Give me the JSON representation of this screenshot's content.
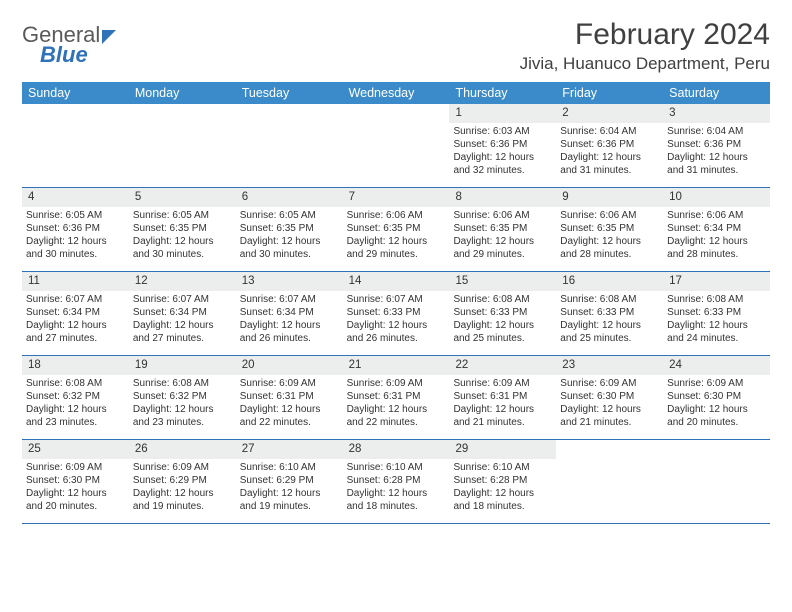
{
  "logo": {
    "text_general": "General",
    "text_blue": "Blue"
  },
  "header": {
    "month_title": "February 2024",
    "location": "Jivia, Huanuco Department, Peru"
  },
  "colors": {
    "header_bar": "#3b8bca",
    "row_divider": "#2f72b8",
    "daynum_bg": "#eceded",
    "text": "#333333",
    "page_bg": "#ffffff"
  },
  "weekdays": [
    "Sunday",
    "Monday",
    "Tuesday",
    "Wednesday",
    "Thursday",
    "Friday",
    "Saturday"
  ],
  "weeks": [
    [
      {
        "day": "",
        "sunrise": "",
        "sunset": "",
        "daylight": ""
      },
      {
        "day": "",
        "sunrise": "",
        "sunset": "",
        "daylight": ""
      },
      {
        "day": "",
        "sunrise": "",
        "sunset": "",
        "daylight": ""
      },
      {
        "day": "",
        "sunrise": "",
        "sunset": "",
        "daylight": ""
      },
      {
        "day": "1",
        "sunrise": "Sunrise: 6:03 AM",
        "sunset": "Sunset: 6:36 PM",
        "daylight": "Daylight: 12 hours and 32 minutes."
      },
      {
        "day": "2",
        "sunrise": "Sunrise: 6:04 AM",
        "sunset": "Sunset: 6:36 PM",
        "daylight": "Daylight: 12 hours and 31 minutes."
      },
      {
        "day": "3",
        "sunrise": "Sunrise: 6:04 AM",
        "sunset": "Sunset: 6:36 PM",
        "daylight": "Daylight: 12 hours and 31 minutes."
      }
    ],
    [
      {
        "day": "4",
        "sunrise": "Sunrise: 6:05 AM",
        "sunset": "Sunset: 6:36 PM",
        "daylight": "Daylight: 12 hours and 30 minutes."
      },
      {
        "day": "5",
        "sunrise": "Sunrise: 6:05 AM",
        "sunset": "Sunset: 6:35 PM",
        "daylight": "Daylight: 12 hours and 30 minutes."
      },
      {
        "day": "6",
        "sunrise": "Sunrise: 6:05 AM",
        "sunset": "Sunset: 6:35 PM",
        "daylight": "Daylight: 12 hours and 30 minutes."
      },
      {
        "day": "7",
        "sunrise": "Sunrise: 6:06 AM",
        "sunset": "Sunset: 6:35 PM",
        "daylight": "Daylight: 12 hours and 29 minutes."
      },
      {
        "day": "8",
        "sunrise": "Sunrise: 6:06 AM",
        "sunset": "Sunset: 6:35 PM",
        "daylight": "Daylight: 12 hours and 29 minutes."
      },
      {
        "day": "9",
        "sunrise": "Sunrise: 6:06 AM",
        "sunset": "Sunset: 6:35 PM",
        "daylight": "Daylight: 12 hours and 28 minutes."
      },
      {
        "day": "10",
        "sunrise": "Sunrise: 6:06 AM",
        "sunset": "Sunset: 6:34 PM",
        "daylight": "Daylight: 12 hours and 28 minutes."
      }
    ],
    [
      {
        "day": "11",
        "sunrise": "Sunrise: 6:07 AM",
        "sunset": "Sunset: 6:34 PM",
        "daylight": "Daylight: 12 hours and 27 minutes."
      },
      {
        "day": "12",
        "sunrise": "Sunrise: 6:07 AM",
        "sunset": "Sunset: 6:34 PM",
        "daylight": "Daylight: 12 hours and 27 minutes."
      },
      {
        "day": "13",
        "sunrise": "Sunrise: 6:07 AM",
        "sunset": "Sunset: 6:34 PM",
        "daylight": "Daylight: 12 hours and 26 minutes."
      },
      {
        "day": "14",
        "sunrise": "Sunrise: 6:07 AM",
        "sunset": "Sunset: 6:33 PM",
        "daylight": "Daylight: 12 hours and 26 minutes."
      },
      {
        "day": "15",
        "sunrise": "Sunrise: 6:08 AM",
        "sunset": "Sunset: 6:33 PM",
        "daylight": "Daylight: 12 hours and 25 minutes."
      },
      {
        "day": "16",
        "sunrise": "Sunrise: 6:08 AM",
        "sunset": "Sunset: 6:33 PM",
        "daylight": "Daylight: 12 hours and 25 minutes."
      },
      {
        "day": "17",
        "sunrise": "Sunrise: 6:08 AM",
        "sunset": "Sunset: 6:33 PM",
        "daylight": "Daylight: 12 hours and 24 minutes."
      }
    ],
    [
      {
        "day": "18",
        "sunrise": "Sunrise: 6:08 AM",
        "sunset": "Sunset: 6:32 PM",
        "daylight": "Daylight: 12 hours and 23 minutes."
      },
      {
        "day": "19",
        "sunrise": "Sunrise: 6:08 AM",
        "sunset": "Sunset: 6:32 PM",
        "daylight": "Daylight: 12 hours and 23 minutes."
      },
      {
        "day": "20",
        "sunrise": "Sunrise: 6:09 AM",
        "sunset": "Sunset: 6:31 PM",
        "daylight": "Daylight: 12 hours and 22 minutes."
      },
      {
        "day": "21",
        "sunrise": "Sunrise: 6:09 AM",
        "sunset": "Sunset: 6:31 PM",
        "daylight": "Daylight: 12 hours and 22 minutes."
      },
      {
        "day": "22",
        "sunrise": "Sunrise: 6:09 AM",
        "sunset": "Sunset: 6:31 PM",
        "daylight": "Daylight: 12 hours and 21 minutes."
      },
      {
        "day": "23",
        "sunrise": "Sunrise: 6:09 AM",
        "sunset": "Sunset: 6:30 PM",
        "daylight": "Daylight: 12 hours and 21 minutes."
      },
      {
        "day": "24",
        "sunrise": "Sunrise: 6:09 AM",
        "sunset": "Sunset: 6:30 PM",
        "daylight": "Daylight: 12 hours and 20 minutes."
      }
    ],
    [
      {
        "day": "25",
        "sunrise": "Sunrise: 6:09 AM",
        "sunset": "Sunset: 6:30 PM",
        "daylight": "Daylight: 12 hours and 20 minutes."
      },
      {
        "day": "26",
        "sunrise": "Sunrise: 6:09 AM",
        "sunset": "Sunset: 6:29 PM",
        "daylight": "Daylight: 12 hours and 19 minutes."
      },
      {
        "day": "27",
        "sunrise": "Sunrise: 6:10 AM",
        "sunset": "Sunset: 6:29 PM",
        "daylight": "Daylight: 12 hours and 19 minutes."
      },
      {
        "day": "28",
        "sunrise": "Sunrise: 6:10 AM",
        "sunset": "Sunset: 6:28 PM",
        "daylight": "Daylight: 12 hours and 18 minutes."
      },
      {
        "day": "29",
        "sunrise": "Sunrise: 6:10 AM",
        "sunset": "Sunset: 6:28 PM",
        "daylight": "Daylight: 12 hours and 18 minutes."
      },
      {
        "day": "",
        "sunrise": "",
        "sunset": "",
        "daylight": ""
      },
      {
        "day": "",
        "sunrise": "",
        "sunset": "",
        "daylight": ""
      }
    ]
  ]
}
